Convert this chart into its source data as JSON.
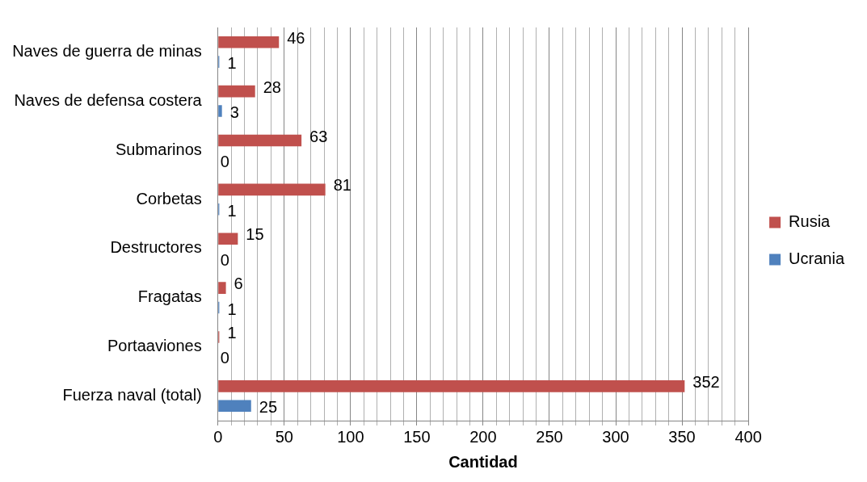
{
  "chart_data": {
    "type": "bar",
    "orientation": "horizontal",
    "xlabel": "Cantidad",
    "categories": [
      "Naves de guerra de minas",
      "Naves de defensa costera",
      "Submarinos",
      "Corbetas",
      "Destructores",
      "Fragatas",
      "Portaaviones",
      "Fuerza naval (total)"
    ],
    "series": [
      {
        "name": "Rusia",
        "color": "#c0504d",
        "values": [
          46,
          28,
          63,
          81,
          15,
          6,
          1,
          352
        ]
      },
      {
        "name": "Ucrania",
        "color": "#4f81bd",
        "values": [
          1,
          3,
          0,
          1,
          0,
          1,
          0,
          25
        ]
      }
    ],
    "xlim": [
      0,
      400
    ],
    "xticks": [
      0,
      {
        "value": 10,
        "label": null
      },
      {
        "value": 20,
        "label": null
      },
      {
        "value": 30,
        "label": null
      },
      {
        "value": 40,
        "label": null
      },
      50,
      {
        "value": 60,
        "label": null
      },
      {
        "value": 70,
        "label": null
      },
      {
        "value": 80,
        "label": null
      },
      {
        "value": 90,
        "label": null
      },
      100,
      {
        "value": 110,
        "label": null
      },
      {
        "value": 120,
        "label": null
      },
      {
        "value": 130,
        "label": null
      },
      {
        "value": 140,
        "label": null
      },
      150,
      {
        "value": 160,
        "label": null
      },
      {
        "value": 170,
        "label": null
      },
      {
        "value": 180,
        "label": null
      },
      {
        "value": 190,
        "label": null
      },
      200,
      {
        "value": 210,
        "label": null
      },
      {
        "value": 220,
        "label": null
      },
      {
        "value": 230,
        "label": null
      },
      {
        "value": 240,
        "label": null
      },
      250,
      {
        "value": 260,
        "label": null
      },
      {
        "value": 270,
        "label": null
      },
      {
        "value": 280,
        "label": null
      },
      {
        "value": 290,
        "label": null
      },
      300,
      {
        "value": 310,
        "label": null
      },
      {
        "value": 320,
        "label": null
      },
      {
        "value": 330,
        "label": null
      },
      {
        "value": 340,
        "label": null
      },
      350,
      {
        "value": 360,
        "label": null
      },
      {
        "value": 370,
        "label": null
      },
      {
        "value": 380,
        "label": null
      },
      {
        "value": 390,
        "label": null
      },
      400
    ],
    "grid": "x",
    "legend": "right",
    "data_labels": true
  }
}
